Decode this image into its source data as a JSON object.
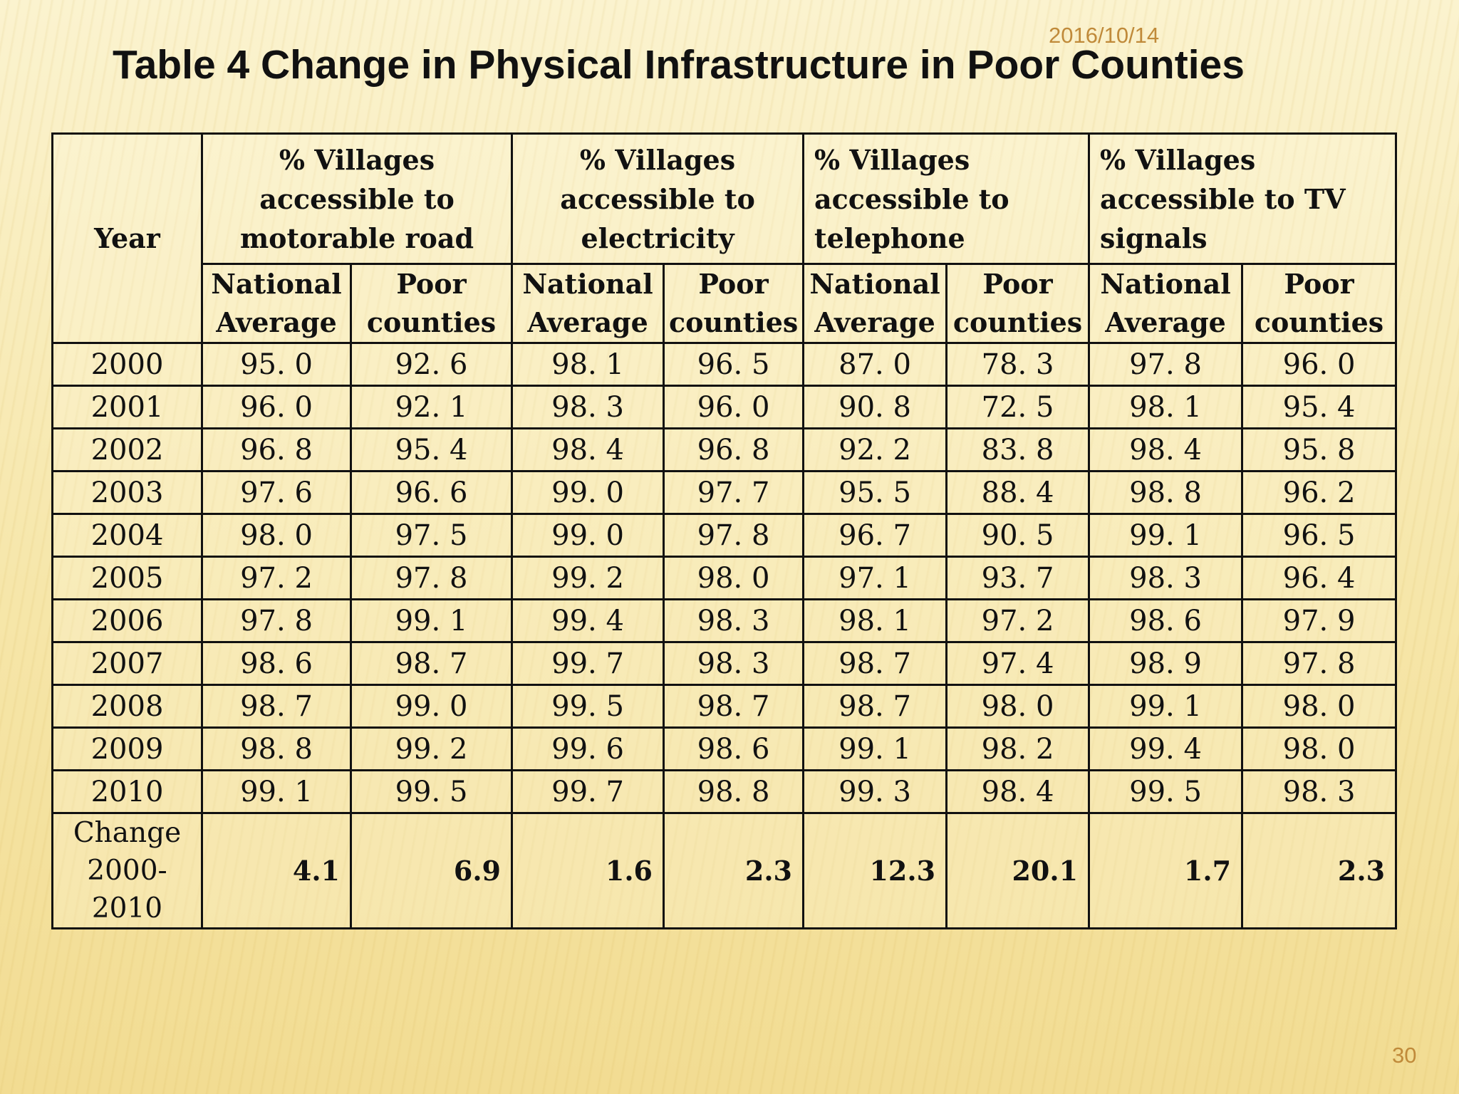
{
  "date": "2016/10/14",
  "title": "Table 4  Change in Physical Infrastructure in Poor Counties",
  "slide_number": "30",
  "table": {
    "year_header": "Year",
    "groups": [
      {
        "label": "% Villages accessible to motorable road"
      },
      {
        "label": "% Villages accessible to electricity"
      },
      {
        "label": "% Villages accessible to telephone"
      },
      {
        "label": "% Villages accessible to TV signals"
      }
    ],
    "subheaders": [
      "National Average",
      "Poor counties",
      "National Average",
      "Poor counties",
      "National Average",
      "Poor counties",
      "National Average",
      "Poor counties"
    ],
    "rows": [
      {
        "year": "2000",
        "values": [
          "95. 0",
          "92. 6",
          "98. 1",
          "96. 5",
          "87. 0",
          "78. 3",
          "97. 8",
          "96. 0"
        ]
      },
      {
        "year": "2001",
        "values": [
          "96. 0",
          "92. 1",
          "98. 3",
          "96. 0",
          "90. 8",
          "72. 5",
          "98. 1",
          "95. 4"
        ]
      },
      {
        "year": "2002",
        "values": [
          "96. 8",
          "95. 4",
          "98. 4",
          "96. 8",
          "92. 2",
          "83. 8",
          "98. 4",
          "95. 8"
        ]
      },
      {
        "year": "2003",
        "values": [
          "97. 6",
          "96. 6",
          "99. 0",
          "97. 7",
          "95. 5",
          "88. 4",
          "98. 8",
          "96. 2"
        ]
      },
      {
        "year": "2004",
        "values": [
          "98. 0",
          "97. 5",
          "99. 0",
          "97. 8",
          "96. 7",
          "90. 5",
          "99. 1",
          "96. 5"
        ]
      },
      {
        "year": "2005",
        "values": [
          "97. 2",
          "97. 8",
          "99. 2",
          "98. 0",
          "97. 1",
          "93. 7",
          "98. 3",
          "96. 4"
        ]
      },
      {
        "year": "2006",
        "values": [
          "97. 8",
          "99. 1",
          "99. 4",
          "98. 3",
          "98. 1",
          "97. 2",
          "98. 6",
          "97. 9"
        ]
      },
      {
        "year": "2007",
        "values": [
          "98. 6",
          "98. 7",
          "99. 7",
          "98. 3",
          "98. 7",
          "97. 4",
          "98. 9",
          "97. 8"
        ]
      },
      {
        "year": "2008",
        "values": [
          "98. 7",
          "99. 0",
          "99. 5",
          "98. 7",
          "98. 7",
          "98. 0",
          "99. 1",
          "98. 0"
        ]
      },
      {
        "year": "2009",
        "values": [
          "98. 8",
          "99. 2",
          "99. 6",
          "98. 6",
          "99. 1",
          "98. 2",
          "99. 4",
          "98. 0"
        ]
      },
      {
        "year": "2010",
        "values": [
          "99. 1",
          "99. 5",
          "99. 7",
          "98. 8",
          "99. 3",
          "98. 4",
          "99. 5",
          "98. 3"
        ]
      }
    ],
    "change_row": {
      "label_lines": [
        "Change",
        "2000-",
        "2010"
      ],
      "values": [
        "4.1",
        "6.9",
        "1.6",
        "2.3",
        "12.3",
        "20.1",
        "1.7",
        "2.3"
      ]
    }
  }
}
